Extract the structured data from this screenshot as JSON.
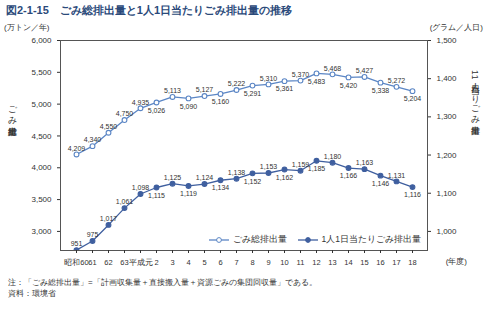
{
  "chart_data": {
    "type": "line",
    "title": "図2-1-15　ごみ総排出量と1人1日当たりごみ排出量の推移",
    "y_label": "ごみ総排出量",
    "y_unit": "(万トン／年)",
    "y2_label": "1人1日当たりごみ排出量",
    "y2_unit": "(グラム／人日)",
    "x_label": "(年度)",
    "notes": [
      "注：「ごみ総排出量」=「計画収集量＋直接搬入量＋資源ごみの集団回収量」である。",
      "資料：環境省"
    ],
    "categories": [
      "昭和60",
      "61",
      "62",
      "63",
      "平成元",
      "2",
      "3",
      "4",
      "5",
      "6",
      "7",
      "8",
      "9",
      "10",
      "11",
      "12",
      "13",
      "14",
      "15",
      "16",
      "17",
      "18"
    ],
    "series": [
      {
        "name": "ごみ総排出量",
        "color": "#5b86c5",
        "marker": "open_circle",
        "type": "line",
        "values": [
          4209,
          4340,
          4550,
          4750,
          4935,
          5026,
          5113,
          5090,
          5127,
          5160,
          5222,
          5291,
          5310,
          5361,
          5370,
          5483,
          5468,
          5420,
          5427,
          5338,
          5272,
          5204
        ],
        "value_labels": [
          "4,209",
          "4,340",
          "4,550",
          "4,750",
          "4,935",
          "5,026",
          "5,113",
          "5,090",
          "5,127",
          "5,160",
          "5,222",
          "5,291",
          "5,310",
          "5,361",
          "5,370",
          "5,483",
          "5,468",
          "5,420",
          "5,427",
          "5,338",
          "5,272",
          "5,204"
        ]
      },
      {
        "name": "1人1日当たりごみ排出量",
        "color": "#3f5f9f",
        "marker": "circle",
        "type": "line",
        "axis": "y2",
        "values": [
          951,
          975,
          1017,
          1061,
          1098,
          1115,
          1125,
          1119,
          1124,
          1134,
          1138,
          1152,
          1153,
          1162,
          1159,
          1185,
          1180,
          1166,
          1163,
          1146,
          1131,
          1116
        ],
        "value_labels": [
          "951",
          "975",
          "1,017",
          "1,061",
          "1,098",
          "1,115",
          "1,125",
          "1,119",
          "1,124",
          "1,134",
          "1,138",
          "1,152",
          "1,153",
          "1,162",
          "1,159",
          "1,185",
          "1,180",
          "1,166",
          "1,163",
          "1,146",
          "1,131",
          "1,116"
        ]
      }
    ],
    "ylim": [
      2700,
      6000
    ],
    "yticks": [
      {
        "value": 3000,
        "label": "3,000"
      },
      {
        "value": 3500,
        "label": "3,500"
      },
      {
        "value": 4000,
        "label": "4,000"
      },
      {
        "value": 4500,
        "label": "4,500"
      },
      {
        "value": 5000,
        "label": "5,000"
      },
      {
        "value": 5500,
        "label": "5,500"
      },
      {
        "value": 6000,
        "label": "6,000"
      }
    ],
    "y2lim": [
      950,
      1500
    ],
    "y2ticks": [
      {
        "value": 1000,
        "label": "1,000"
      },
      {
        "value": 1100,
        "label": "1,100"
      },
      {
        "value": 1200,
        "label": "1,200"
      },
      {
        "value": 1300,
        "label": "1,300"
      },
      {
        "value": 1400,
        "label": "1,400"
      },
      {
        "value": 1500,
        "label": "1,500"
      }
    ],
    "data_labels": true,
    "legend": "lower right",
    "grid": false
  }
}
